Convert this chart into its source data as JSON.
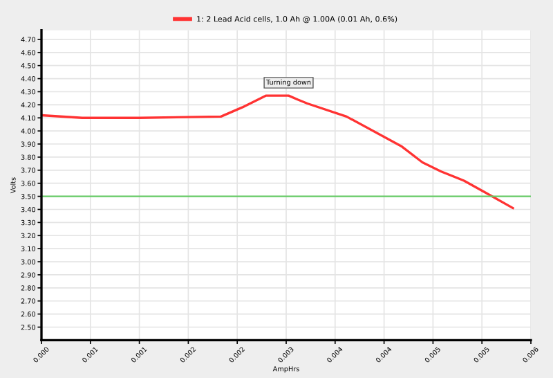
{
  "chart_data": {
    "type": "line",
    "xlabel": "AmpHrs",
    "ylabel": "Volts",
    "x": [
      0,
      0.0005,
      0.0012,
      0.0022,
      0.00246,
      0.00275,
      0.00303,
      0.00314,
      0.00326,
      0.00374,
      0.00442,
      0.00467,
      0.0049,
      0.00518,
      0.00544,
      0.00578
    ],
    "series": [
      {
        "name": "1: 2 Lead Acid cells, 1.0 Ah @ 1.00A (0.01 Ah, 0.6%)",
        "color": "#ff3333",
        "values": [
          4.12,
          4.1,
          4.1,
          4.11,
          4.18,
          4.27,
          4.27,
          4.24,
          4.21,
          4.11,
          3.88,
          3.76,
          3.69,
          3.62,
          3.53,
          3.41
        ]
      }
    ],
    "xlim": [
      0,
      0.006
    ],
    "xticks": [
      {
        "value": 0,
        "label": "0.000"
      },
      {
        "value": 0.0006,
        "label": "0.001"
      },
      {
        "value": 0.0012,
        "label": "0.001"
      },
      {
        "value": 0.0018,
        "label": "0.002"
      },
      {
        "value": 0.0024,
        "label": "0.002"
      },
      {
        "value": 0.003,
        "label": "0.003"
      },
      {
        "value": 0.0036,
        "label": "0.004"
      },
      {
        "value": 0.0042,
        "label": "0.004"
      },
      {
        "value": 0.0048,
        "label": "0.005"
      },
      {
        "value": 0.0054,
        "label": "0.005"
      },
      {
        "value": 0.006,
        "label": "0.006"
      }
    ],
    "ylim": [
      2.4,
      4.77
    ],
    "yticks": [
      {
        "value": 2.5,
        "label": "2.50"
      },
      {
        "value": 2.6,
        "label": "2.60"
      },
      {
        "value": 2.7,
        "label": "2.70"
      },
      {
        "value": 2.8,
        "label": "2.80"
      },
      {
        "value": 2.9,
        "label": "2.90"
      },
      {
        "value": 3.0,
        "label": "3.00"
      },
      {
        "value": 3.1,
        "label": "3.10"
      },
      {
        "value": 3.2,
        "label": "3.20"
      },
      {
        "value": 3.3,
        "label": "3.30"
      },
      {
        "value": 3.4,
        "label": "3.40"
      },
      {
        "value": 3.5,
        "label": "3.50"
      },
      {
        "value": 3.6,
        "label": "3.60"
      },
      {
        "value": 3.7,
        "label": "3.70"
      },
      {
        "value": 3.8,
        "label": "3.80"
      },
      {
        "value": 3.9,
        "label": "3.90"
      },
      {
        "value": 4.0,
        "label": "4.00"
      },
      {
        "value": 4.1,
        "label": "4.10"
      },
      {
        "value": 4.2,
        "label": "4.20"
      },
      {
        "value": 4.3,
        "label": "4.30"
      },
      {
        "value": 4.4,
        "label": "4.40"
      },
      {
        "value": 4.5,
        "label": "4.50"
      },
      {
        "value": 4.6,
        "label": "4.60"
      },
      {
        "value": 4.7,
        "label": "4.70"
      }
    ],
    "ref_lines": [
      {
        "axis": "y",
        "value": 3.5,
        "color": "#66cc66"
      }
    ],
    "annotations": [
      {
        "text": "Turning down",
        "x": 0.00303,
        "y": 4.27
      }
    ],
    "grid": true,
    "legend": "top",
    "marker": "none",
    "line_style": "solid"
  }
}
